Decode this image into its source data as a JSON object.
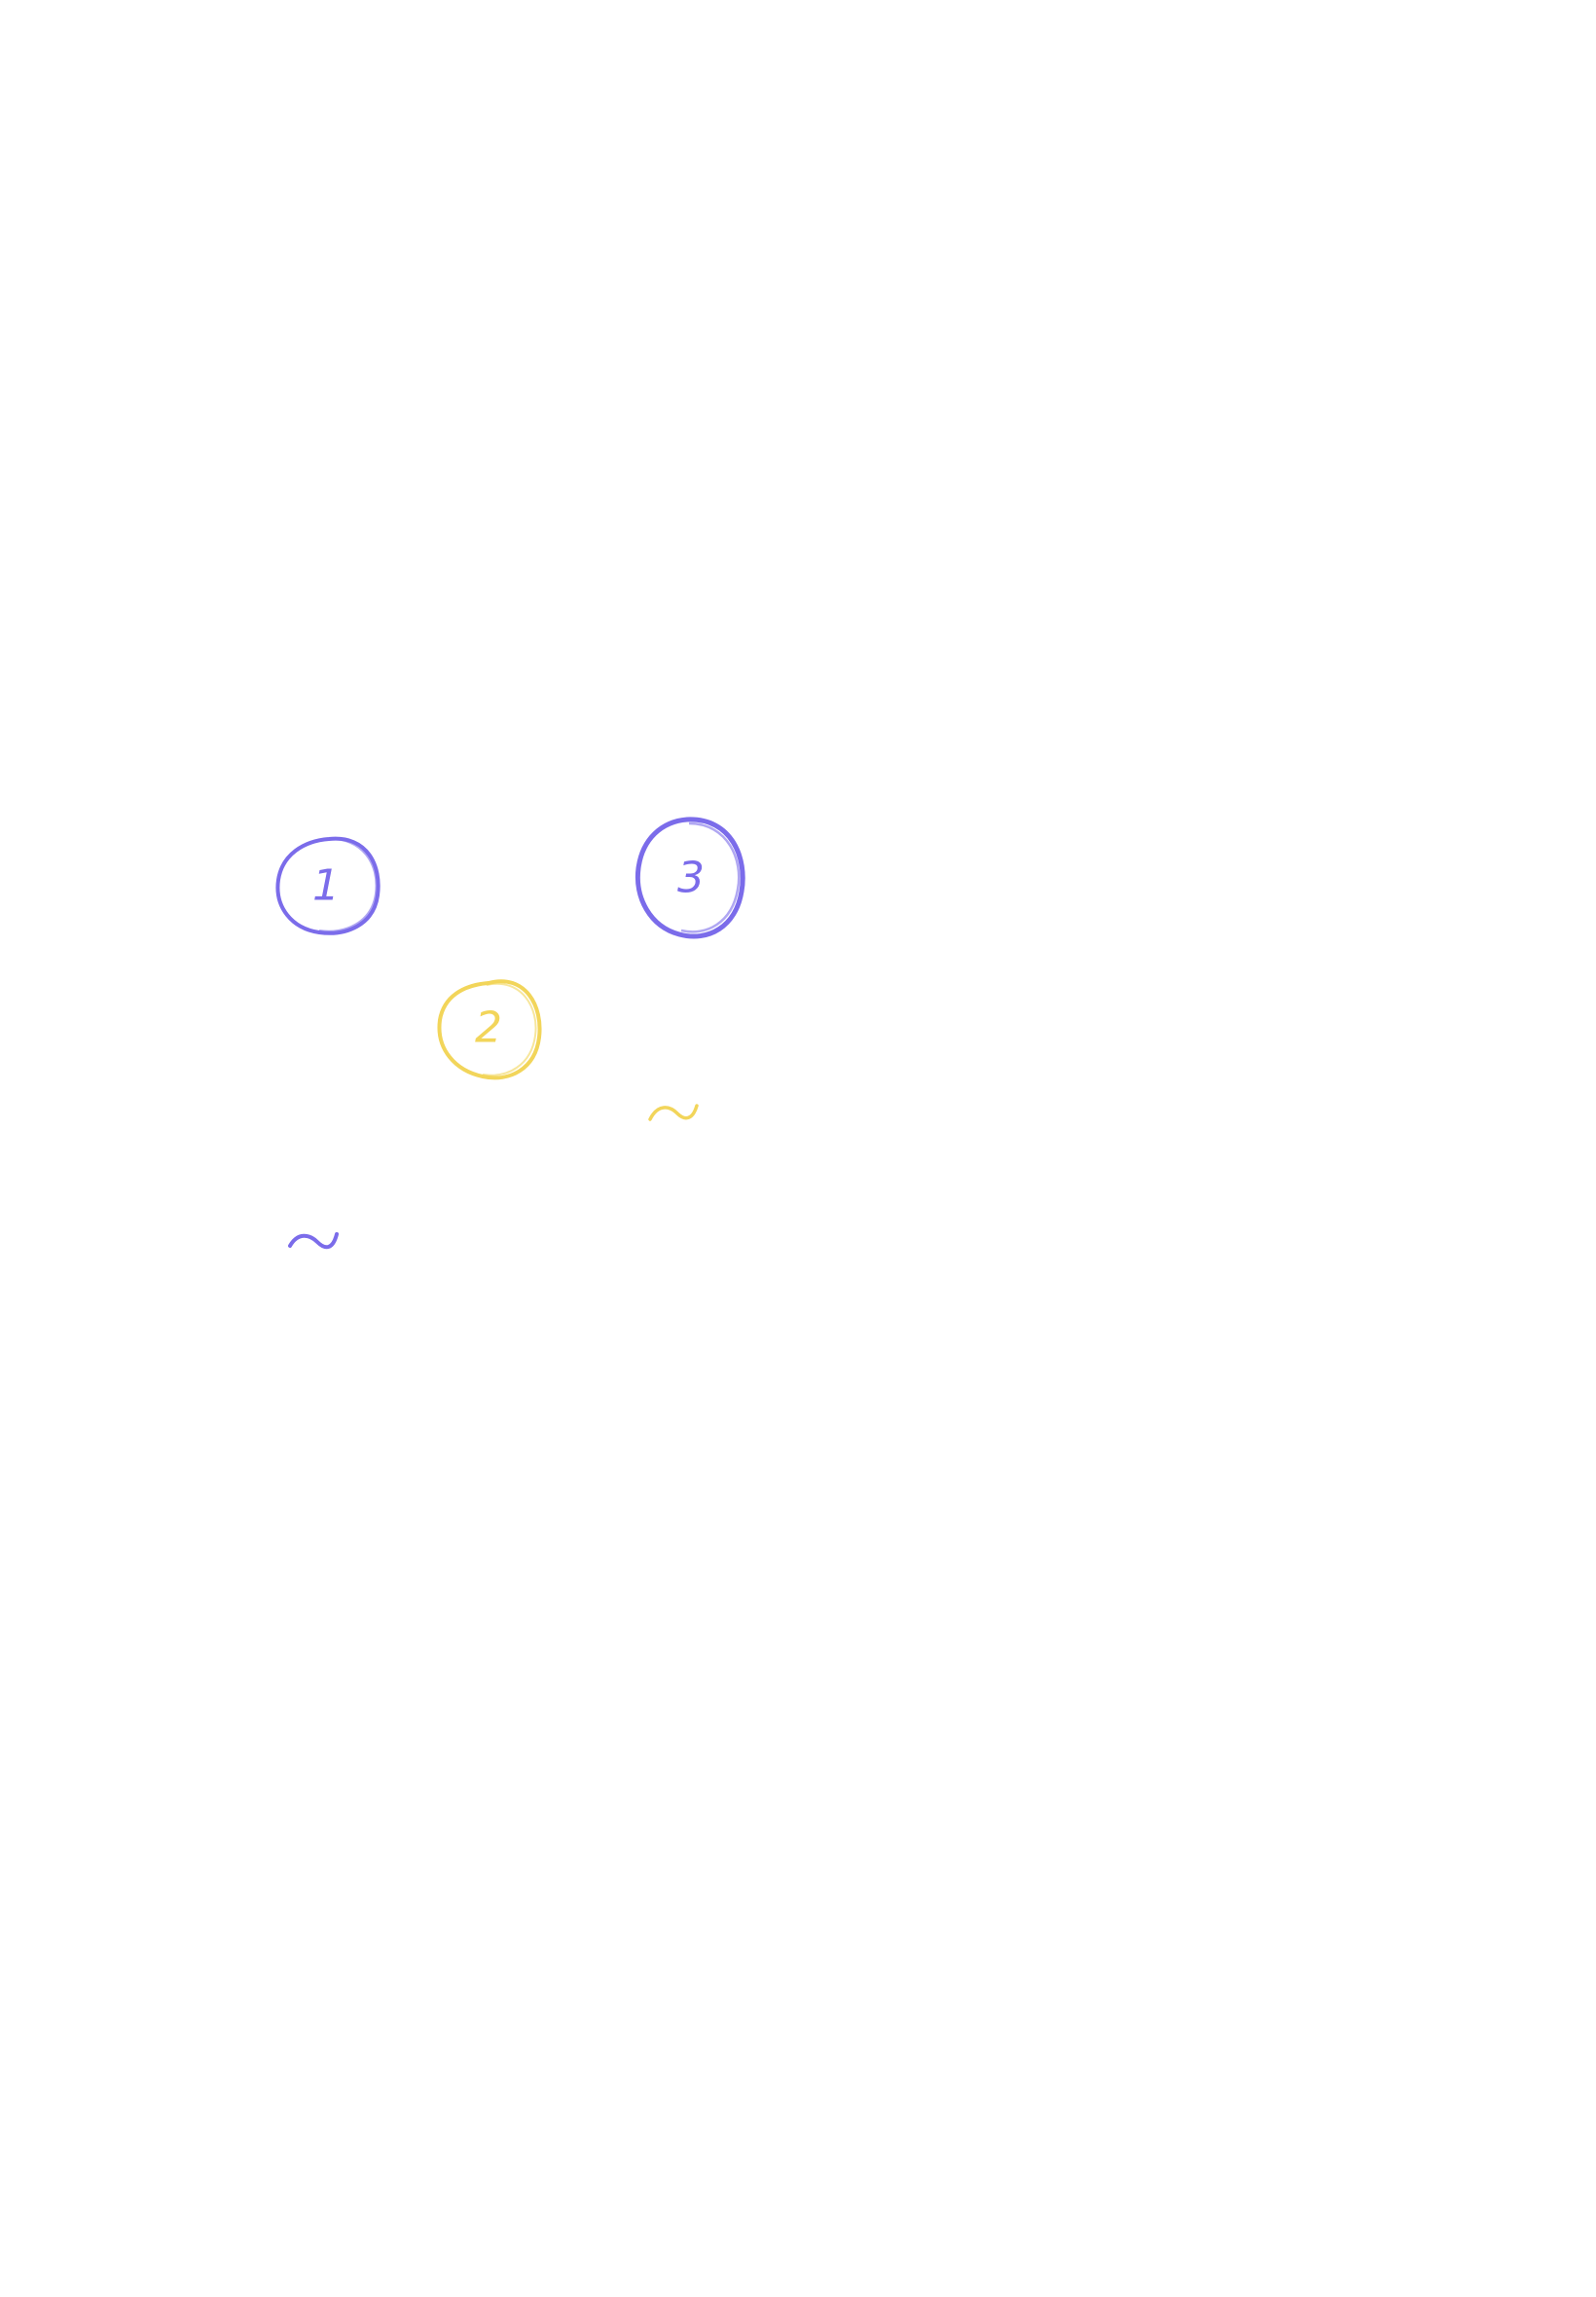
{
  "board": {
    "background_color": "#ffffff",
    "dots": [
      {
        "label": "1",
        "color": "#7b6cea"
      },
      {
        "label": "2",
        "color": "#f2d55a"
      },
      {
        "label": "3",
        "color": "#7b6cea"
      }
    ],
    "squiggles": [
      {
        "glyph": "~",
        "color": "#f2d55a"
      },
      {
        "glyph": "~",
        "color": "#7b6cea"
      }
    ]
  }
}
